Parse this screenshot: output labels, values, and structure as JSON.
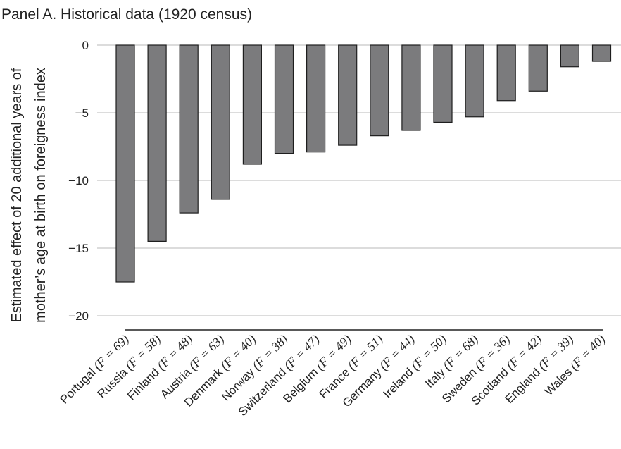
{
  "chart_data": {
    "type": "bar",
    "title": "Panel A. Historical data (1920 census)",
    "ylabel_lines": [
      "Estimated effect of 20 additional years of",
      "mother’s age at birth on foreigness index"
    ],
    "xlabel": "",
    "ylim": [
      -20,
      0
    ],
    "yticks": [
      0,
      -5,
      -10,
      -15,
      -20
    ],
    "ytick_labels": [
      "0",
      "−5",
      "−10",
      "−15",
      "−20"
    ],
    "grid": true,
    "bar_color": "#7b7b7d",
    "categories": [
      {
        "name": "Portugal",
        "f": "69"
      },
      {
        "name": "Russia",
        "f": "58"
      },
      {
        "name": "Finland",
        "f": "48"
      },
      {
        "name": "Austria",
        "f": "63"
      },
      {
        "name": "Denmark",
        "f": "40"
      },
      {
        "name": "Norway",
        "f": "38"
      },
      {
        "name": "Switzerland",
        "f": "47"
      },
      {
        "name": "Belgium",
        "f": "49"
      },
      {
        "name": "France",
        "f": "51"
      },
      {
        "name": "Germany",
        "f": "44"
      },
      {
        "name": "Ireland",
        "f": "50"
      },
      {
        "name": "Italy",
        "f": "68"
      },
      {
        "name": "Sweden",
        "f": "36"
      },
      {
        "name": "Scotland",
        "f": "42"
      },
      {
        "name": "England",
        "f": "39"
      },
      {
        "name": "Wales",
        "f": "40"
      }
    ],
    "values": [
      -17.5,
      -14.5,
      -12.4,
      -11.4,
      -8.8,
      -8.0,
      -7.9,
      -7.4,
      -6.7,
      -6.3,
      -5.7,
      -5.3,
      -4.1,
      -3.4,
      -1.6,
      -1.2
    ]
  }
}
